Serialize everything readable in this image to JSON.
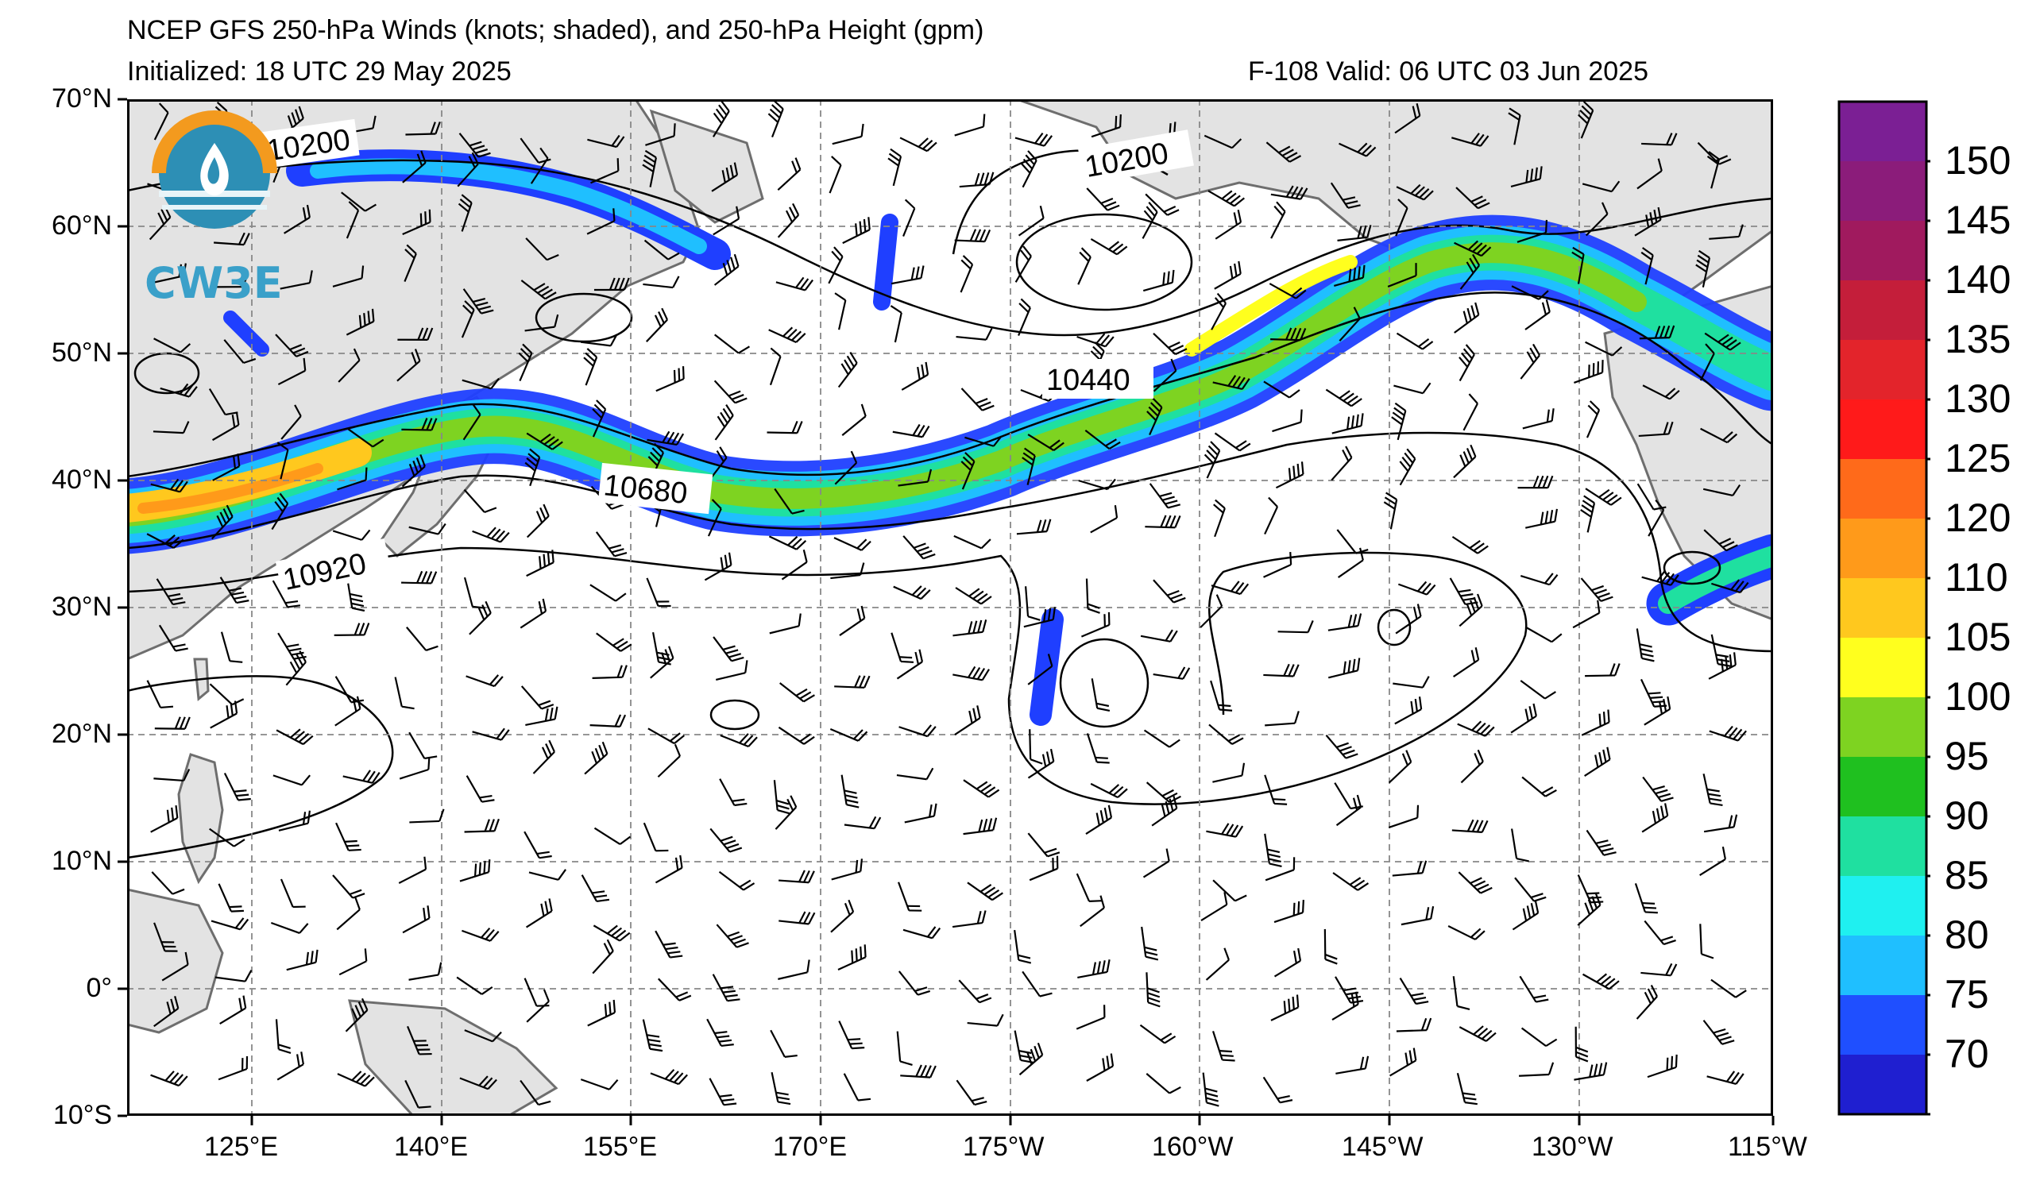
{
  "title": {
    "line1": "NCEP GFS 250-hPa Winds (knots; shaded), and 250-hPa Height (gpm)",
    "line2_left": "Initialized: 18 UTC 29 May 2025",
    "line2_right": "F-108  Valid: 06 UTC 03 Jun 2025"
  },
  "logo": {
    "text": "CW3E"
  },
  "axes": {
    "lat_labels": [
      "70°N",
      "60°N",
      "50°N",
      "40°N",
      "30°N",
      "20°N",
      "10°N",
      "0°",
      "10°S"
    ],
    "lon_labels": [
      "125°E",
      "140°E",
      "155°E",
      "170°E",
      "175°W",
      "160°W",
      "145°W",
      "130°W",
      "115°W"
    ]
  },
  "contour_labels": [
    "10200",
    "10200",
    "10440",
    "10680",
    "10920"
  ],
  "colorbar": {
    "labels": [
      "150",
      "145",
      "140",
      "135",
      "130",
      "125",
      "120",
      "110",
      "105",
      "100",
      "95",
      "90",
      "85",
      "80",
      "75",
      "70"
    ],
    "colors": [
      "#7b1f94",
      "#8b1c7a",
      "#a01a5e",
      "#c41e3a",
      "#e3242b",
      "#ff1a1a",
      "#ff6a1a",
      "#ff9a1a",
      "#ffc81e",
      "#ffff1e",
      "#7ed321",
      "#1fc01f",
      "#1fe0a0",
      "#1ff0f0",
      "#1fbfff",
      "#1f4fff",
      "#1f1fd0"
    ]
  },
  "legend_colors": {
    "land": "#e3e3e3",
    "ocean": "#ffffff",
    "coast": "#6e6e6e",
    "grid": "#888888"
  }
}
